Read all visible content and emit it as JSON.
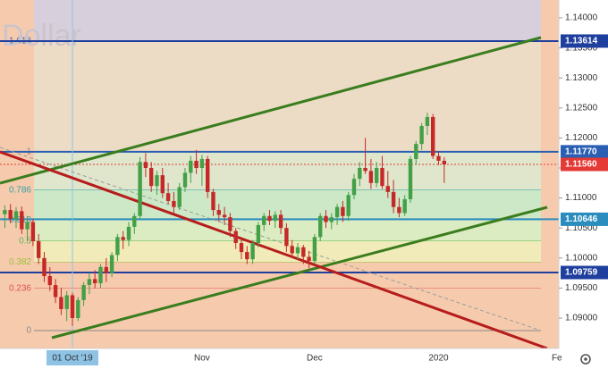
{
  "chart_data": {
    "type": "candlestick",
    "watermark": "Dollar",
    "ylim": [
      1.08494,
      1.14298
    ],
    "yticks": [
      {
        "value": 1.14,
        "label": "1.14000"
      },
      {
        "value": 1.135,
        "label": "1.13500"
      },
      {
        "value": 1.13,
        "label": "1.13000"
      },
      {
        "value": 1.125,
        "label": "1.12500"
      },
      {
        "value": 1.12,
        "label": "1.12000"
      },
      {
        "value": 1.115,
        "label": "1.11500"
      },
      {
        "value": 1.11,
        "label": "1.11000"
      },
      {
        "value": 1.105,
        "label": "1.10500"
      },
      {
        "value": 1.1,
        "label": "1.10000"
      },
      {
        "value": 1.095,
        "label": "1.09500"
      },
      {
        "value": 1.09,
        "label": "1.09000"
      }
    ],
    "up_color": "#43a047",
    "down_color": "#c62828",
    "categories": [
      null,
      null,
      null,
      null,
      null,
      null,
      null,
      null,
      null,
      null,
      null,
      null,
      "01 Oct '19",
      null,
      null,
      null,
      null,
      null,
      null,
      null,
      null,
      null,
      null,
      null,
      null,
      null,
      null,
      null,
      null,
      null,
      null,
      null,
      null,
      null,
      null,
      "Nov",
      null,
      null,
      null,
      null,
      null,
      null,
      null,
      null,
      null,
      null,
      null,
      null,
      null,
      null,
      null,
      null,
      null,
      null,
      null,
      "Dec",
      null,
      null,
      null,
      null,
      null,
      null,
      null,
      null,
      null,
      null,
      null,
      null,
      null,
      null,
      null,
      null,
      null,
      null,
      null,
      null,
      null,
      "2020",
      null,
      null,
      null,
      null,
      null,
      null,
      null,
      null,
      null,
      null,
      null,
      null,
      null,
      null,
      null,
      null,
      null,
      null,
      null,
      null,
      "Fe"
    ],
    "highlighted_category": 12,
    "candles": [
      [
        1.1073,
        1.1088,
        1.105,
        1.108
      ],
      [
        1.108,
        1.109,
        1.1058,
        1.1065
      ],
      [
        1.1065,
        1.1085,
        1.105,
        1.1078
      ],
      [
        1.1078,
        1.1086,
        1.104,
        1.1048
      ],
      [
        1.1048,
        1.107,
        1.1028,
        1.106
      ],
      [
        1.106,
        1.1065,
        1.102,
        1.1028
      ],
      [
        1.1028,
        1.104,
        1.099,
        1.1
      ],
      [
        1.1,
        1.101,
        1.096,
        1.097
      ],
      [
        1.097,
        1.0985,
        1.0945,
        1.0955
      ],
      [
        1.0955,
        1.0965,
        1.0925,
        1.0935
      ],
      [
        1.0935,
        1.095,
        1.0905,
        1.0915
      ],
      [
        1.0915,
        1.0945,
        1.0895,
        1.0938
      ],
      [
        1.0938,
        1.0942,
        1.0887,
        1.09
      ],
      [
        1.09,
        1.0935,
        1.0895,
        1.093
      ],
      [
        1.093,
        1.096,
        1.092,
        1.0955
      ],
      [
        1.0955,
        1.0975,
        1.094,
        1.0965
      ],
      [
        1.0965,
        1.098,
        1.095,
        1.0958
      ],
      [
        1.0958,
        1.099,
        1.095,
        1.0985
      ],
      [
        1.0985,
        1.1,
        1.096,
        1.0975
      ],
      [
        1.0975,
        1.101,
        1.0968,
        1.1005
      ],
      [
        1.1005,
        1.104,
        1.0995,
        1.1035
      ],
      [
        1.1035,
        1.1045,
        1.1015,
        1.103
      ],
      [
        1.103,
        1.106,
        1.102,
        1.1052
      ],
      [
        1.1052,
        1.1075,
        1.104,
        1.107
      ],
      [
        1.107,
        1.1168,
        1.1065,
        1.116
      ],
      [
        1.116,
        1.1175,
        1.1135,
        1.115
      ],
      [
        1.115,
        1.116,
        1.111,
        1.112
      ],
      [
        1.112,
        1.1145,
        1.1105,
        1.1138
      ],
      [
        1.1138,
        1.115,
        1.11,
        1.1108
      ],
      [
        1.1108,
        1.1125,
        1.109,
        1.1095
      ],
      [
        1.1095,
        1.111,
        1.1075,
        1.1085
      ],
      [
        1.1085,
        1.1125,
        1.108,
        1.1118
      ],
      [
        1.1118,
        1.115,
        1.111,
        1.1142
      ],
      [
        1.1142,
        1.117,
        1.1125,
        1.1162
      ],
      [
        1.1162,
        1.118,
        1.114,
        1.115
      ],
      [
        1.115,
        1.1172,
        1.112,
        1.1165
      ],
      [
        1.1165,
        1.117,
        1.11,
        1.111
      ],
      [
        1.111,
        1.1115,
        1.107,
        1.108
      ],
      [
        1.108,
        1.109,
        1.106,
        1.1072
      ],
      [
        1.1072,
        1.1085,
        1.1055,
        1.1068
      ],
      [
        1.1068,
        1.1075,
        1.1035,
        1.1045
      ],
      [
        1.1045,
        1.105,
        1.1015,
        1.1025
      ],
      [
        1.1025,
        1.1035,
        1.0998,
        1.101
      ],
      [
        1.101,
        1.102,
        1.099,
        1.0998
      ],
      [
        1.0998,
        1.103,
        1.099,
        1.1025
      ],
      [
        1.1025,
        1.106,
        1.1018,
        1.1055
      ],
      [
        1.1055,
        1.1075,
        1.1045,
        1.107
      ],
      [
        1.107,
        1.108,
        1.1055,
        1.1062
      ],
      [
        1.1062,
        1.1078,
        1.105,
        1.1072
      ],
      [
        1.1072,
        1.108,
        1.104,
        1.105
      ],
      [
        1.105,
        1.1058,
        1.101,
        1.102
      ],
      [
        1.102,
        1.103,
        1.1,
        1.1008
      ],
      [
        1.1008,
        1.1025,
        1.0998,
        1.1018
      ],
      [
        1.1018,
        1.1022,
        1.099,
        1.1002
      ],
      [
        1.1002,
        1.1012,
        1.0983,
        1.0995
      ],
      [
        1.0995,
        1.104,
        1.099,
        1.1035
      ],
      [
        1.1035,
        1.1075,
        1.1028,
        1.107
      ],
      [
        1.107,
        1.108,
        1.105,
        1.106
      ],
      [
        1.106,
        1.1075,
        1.1048,
        1.1068
      ],
      [
        1.1068,
        1.109,
        1.1055,
        1.1085
      ],
      [
        1.1085,
        1.1095,
        1.106,
        1.107
      ],
      [
        1.107,
        1.111,
        1.1062,
        1.1105
      ],
      [
        1.1105,
        1.114,
        1.1098,
        1.1132
      ],
      [
        1.1132,
        1.116,
        1.112,
        1.115
      ],
      [
        1.115,
        1.12,
        1.114,
        1.1145
      ],
      [
        1.1145,
        1.1165,
        1.1115,
        1.1125
      ],
      [
        1.1125,
        1.116,
        1.1118,
        1.115
      ],
      [
        1.115,
        1.117,
        1.1115,
        1.112
      ],
      [
        1.112,
        1.1145,
        1.11,
        1.111
      ],
      [
        1.111,
        1.113,
        1.1075,
        1.1085
      ],
      [
        1.1085,
        1.11,
        1.1068,
        1.1075
      ],
      [
        1.1075,
        1.1105,
        1.107,
        1.1098
      ],
      [
        1.1098,
        1.117,
        1.1092,
        1.1165
      ],
      [
        1.1165,
        1.1195,
        1.1155,
        1.119
      ],
      [
        1.119,
        1.1225,
        1.118,
        1.122
      ],
      [
        1.122,
        1.1242,
        1.1205,
        1.1235
      ],
      [
        1.1235,
        1.124,
        1.1165,
        1.117
      ],
      [
        1.117,
        1.1178,
        1.1155,
        1.1162
      ],
      [
        1.1162,
        1.1168,
        1.1125,
        1.1156
      ],
      null,
      null,
      null,
      null,
      null,
      null,
      null,
      null,
      null,
      null,
      null,
      null,
      null,
      null,
      null,
      null,
      null,
      null,
      null,
      null
    ],
    "fib_levels": [
      {
        "ratio": 1.618,
        "price": 1.13614,
        "color": "#3b6fc2",
        "band": "#d8cfdc"
      },
      {
        "ratio": 1,
        "price": 1.1177,
        "color": "#8a8a8a",
        "band": "#ecdcc6"
      },
      {
        "ratio": 0.786,
        "price": 1.11133,
        "color": "#3aa0a8",
        "band": "#dfe6cc"
      },
      {
        "ratio": 0.618,
        "price": 1.10632,
        "color": "#3aa0a8",
        "band": "#cde8c6"
      },
      {
        "ratio": 0.5,
        "price": 1.10281,
        "color": "#5cb85c",
        "band": "#dcecc2"
      },
      {
        "ratio": 0.382,
        "price": 1.0993,
        "color": "#9cbf3a",
        "band": "#f1ebba"
      },
      {
        "ratio": 0.236,
        "price": 1.09495,
        "color": "#d9534f",
        "band": "#f6cbad"
      },
      {
        "ratio": 0,
        "price": 1.08792,
        "color": "#8a8a8a",
        "band": "#f6cbad"
      }
    ],
    "levels": [
      {
        "value": 1.13614,
        "color": "#1f3f9e"
      },
      {
        "value": 1.1177,
        "label": "1.11770",
        "color": "#2a5fb4"
      },
      {
        "value": 1.1156,
        "label": "1.11560",
        "color": "#e53935",
        "dashed": true
      },
      {
        "value": 1.10646,
        "color": "#2b8cbe"
      },
      {
        "value": 1.09759,
        "color": "#1f3f9e"
      }
    ]
  }
}
